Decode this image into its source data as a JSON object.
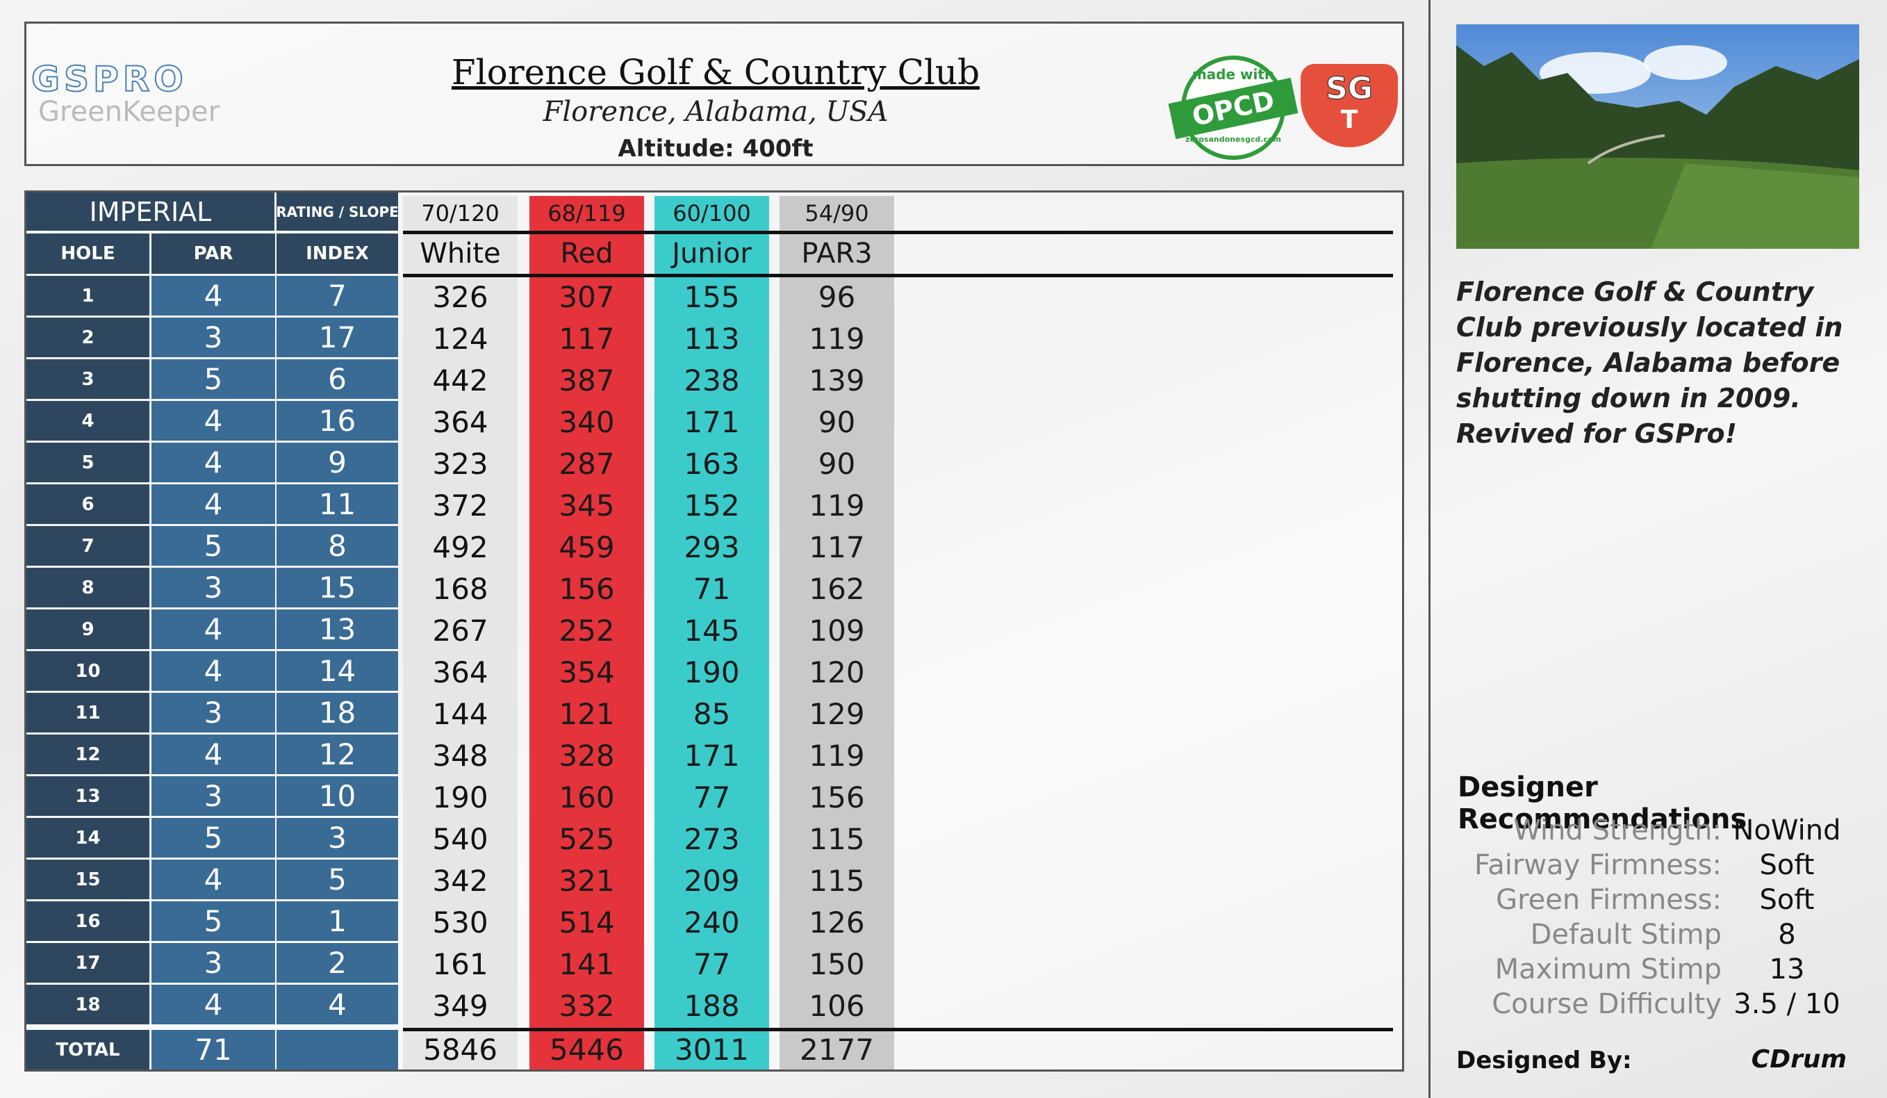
{
  "header": {
    "logo": "GSPRO",
    "logo_sub": "GreenKeeper",
    "title": "Florence Golf & Country Club",
    "location": "Florence, Alabama, USA",
    "altitude": "Altitude: 400ft",
    "badge_top": "made with",
    "badge_main": "OPCD",
    "badge_bottom": "zerosandonesgcd.com",
    "sgt_top": "SG",
    "sgt_bottom": "T"
  },
  "table": {
    "units": "IMPERIAL",
    "rating_label": "RATING / SLOPE",
    "columns": [
      "HOLE",
      "PAR",
      "INDEX"
    ],
    "total_label": "TOTAL",
    "holes": [
      1,
      2,
      3,
      4,
      5,
      6,
      7,
      8,
      9,
      10,
      11,
      12,
      13,
      14,
      15,
      16,
      17,
      18
    ],
    "par": [
      4,
      3,
      5,
      4,
      4,
      4,
      5,
      3,
      4,
      4,
      3,
      4,
      3,
      5,
      4,
      5,
      3,
      4
    ],
    "par_total": 71,
    "index": [
      7,
      17,
      6,
      16,
      9,
      11,
      8,
      15,
      13,
      14,
      18,
      12,
      10,
      3,
      5,
      1,
      2,
      4
    ],
    "tees": [
      {
        "name": "White",
        "rating": "70/120",
        "color": "#e6e6e6",
        "text_color": "#111111",
        "yards": [
          326,
          124,
          442,
          364,
          323,
          372,
          492,
          168,
          267,
          364,
          144,
          348,
          190,
          540,
          342,
          530,
          161,
          349
        ],
        "total": 5846
      },
      {
        "name": "Red",
        "rating": "68/119",
        "color": "#e5333b",
        "text_color": "#1a1a1a",
        "yards": [
          307,
          117,
          387,
          340,
          287,
          345,
          459,
          156,
          252,
          354,
          121,
          328,
          160,
          525,
          321,
          514,
          141,
          332
        ],
        "total": 5446
      },
      {
        "name": "Junior",
        "rating": "60/100",
        "color": "#3ccbcb",
        "text_color": "#1a1a1a",
        "yards": [
          155,
          113,
          238,
          171,
          163,
          152,
          293,
          71,
          145,
          190,
          85,
          171,
          77,
          273,
          209,
          240,
          77,
          188
        ],
        "total": 3011
      },
      {
        "name": "PAR3",
        "rating": "54/90",
        "color": "#c9c9c9",
        "text_color": "#1a1a1a",
        "yards": [
          96,
          119,
          139,
          90,
          90,
          119,
          117,
          162,
          109,
          120,
          129,
          119,
          156,
          115,
          115,
          126,
          150,
          106
        ],
        "total": 2177
      }
    ]
  },
  "description": "Florence Golf & Country Club previously located in Florence, Alabama before shutting down in 2009. Revived for GSPro!",
  "recommendations": {
    "title": "Designer Recommendations",
    "items": [
      {
        "label": "Wind Strength:",
        "value": "NoWind"
      },
      {
        "label": "Fairway Firmness:",
        "value": "Soft"
      },
      {
        "label": "Green Firmness:",
        "value": "Soft"
      },
      {
        "label": "Default Stimp",
        "value": "8"
      },
      {
        "label": "Maximum Stimp",
        "value": "13"
      },
      {
        "label": "Course Difficulty",
        "value": "3.5 / 10"
      }
    ]
  },
  "designer": {
    "label": "Designed By:",
    "name": "CDrum"
  }
}
